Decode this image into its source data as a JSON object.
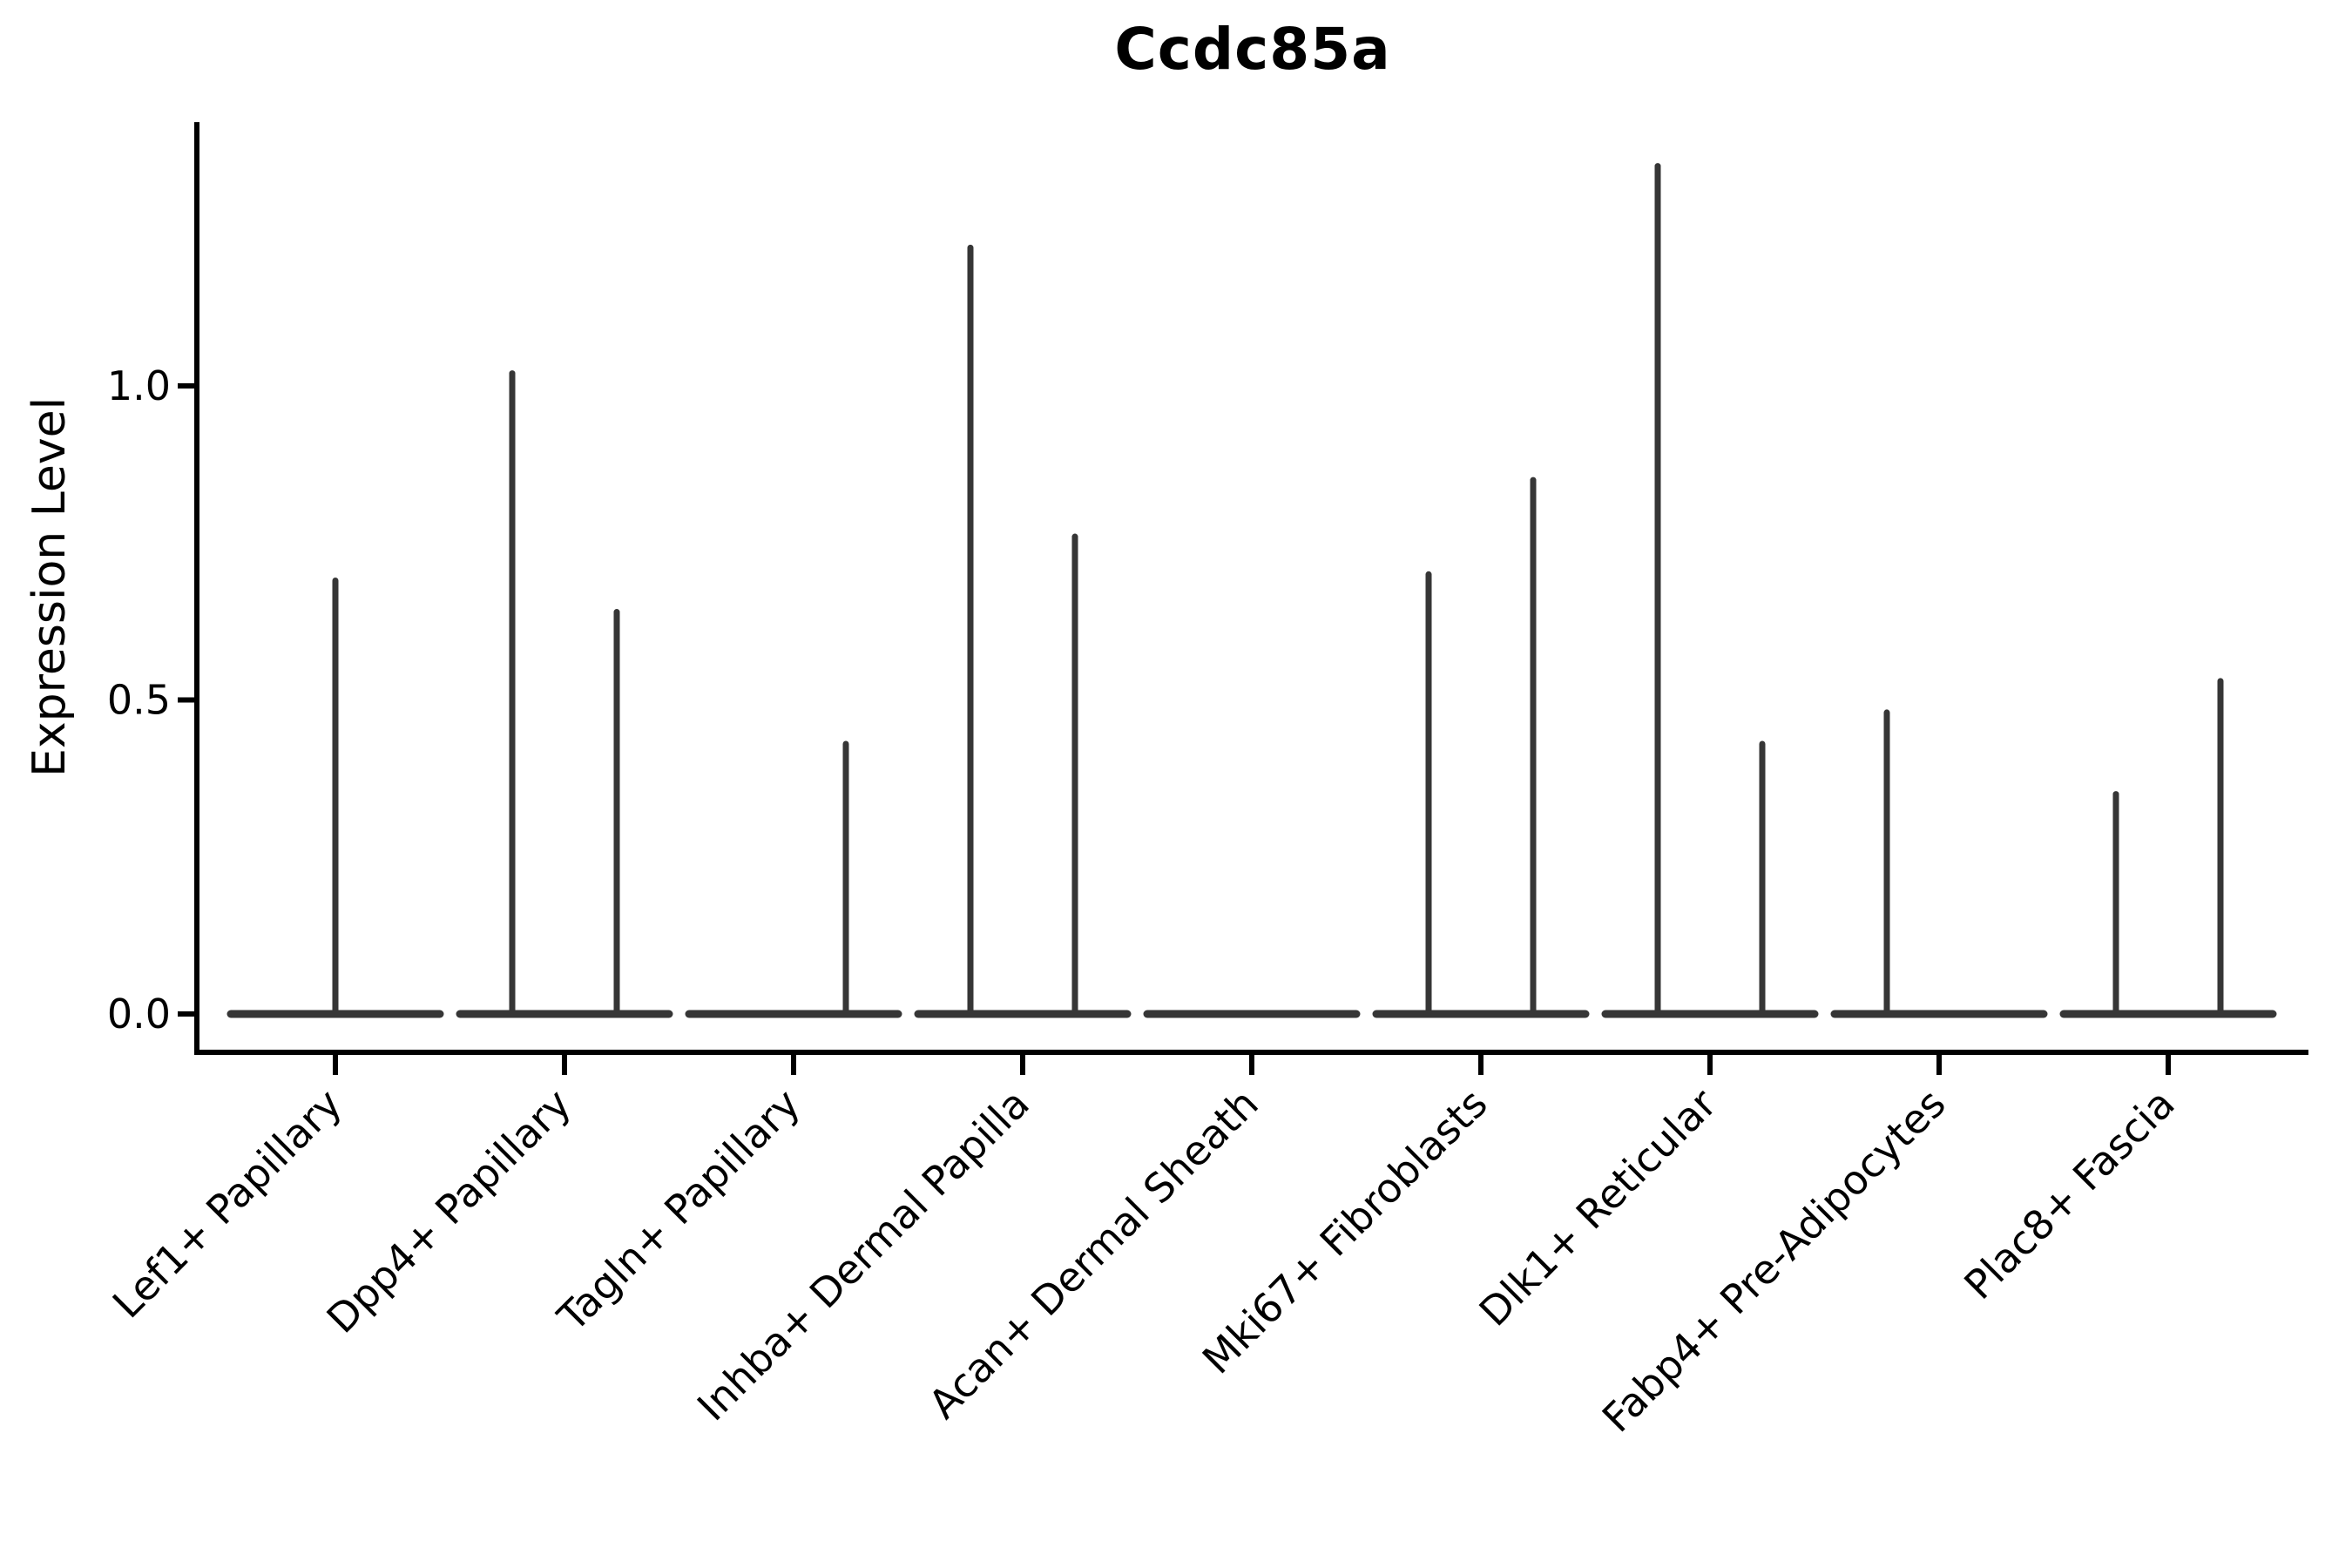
{
  "title": "Ccdc85a",
  "y_axis": {
    "label": "Expression Level"
  },
  "chart_data": {
    "type": "violin",
    "title": "Ccdc85a",
    "xlabel": "",
    "ylabel": "Expression Level",
    "yticks": [
      0.0,
      0.5,
      1.0
    ],
    "ylim": [
      -0.061,
      1.42
    ],
    "grid": false,
    "legend": null,
    "categories": [
      "Lef1+ Papillary",
      "Dpp4+ Papillary",
      "Tagln+ Papillary",
      "Inhba+ Dermal Papilla",
      "Acan+ Dermal Sheath",
      "Mki67+ Fibroblasts",
      "Dlk1+ Reticular",
      "Fabp4+ Pre-Adipocytes",
      "Plac8+ Fascia"
    ],
    "violins": [
      {
        "category": "Lef1+ Papillary",
        "zero_line": true,
        "spikes": [
          {
            "position": "center",
            "max": 0.69
          }
        ]
      },
      {
        "category": "Dpp4+ Papillary",
        "zero_line": true,
        "spikes": [
          {
            "position": "left",
            "max": 1.02
          },
          {
            "position": "right",
            "max": 0.64
          }
        ]
      },
      {
        "category": "Tagln+ Papillary",
        "zero_line": true,
        "spikes": [
          {
            "position": "right",
            "max": 0.43
          }
        ]
      },
      {
        "category": "Inhba+ Dermal Papilla",
        "zero_line": true,
        "spikes": [
          {
            "position": "left",
            "max": 1.22
          },
          {
            "position": "right",
            "max": 0.76
          }
        ]
      },
      {
        "category": "Acan+ Dermal Sheath",
        "zero_line": true,
        "spikes": []
      },
      {
        "category": "Mki67+ Fibroblasts",
        "zero_line": true,
        "spikes": [
          {
            "position": "left",
            "max": 0.7
          },
          {
            "position": "right",
            "max": 0.85
          }
        ]
      },
      {
        "category": "Dlk1+ Reticular",
        "zero_line": true,
        "spikes": [
          {
            "position": "left",
            "max": 1.35
          },
          {
            "position": "right",
            "max": 0.43
          }
        ]
      },
      {
        "category": "Fabp4+ Pre-Adipocytes",
        "zero_line": true,
        "spikes": [
          {
            "position": "left",
            "max": 0.48
          }
        ]
      },
      {
        "category": "Plac8+ Fascia",
        "zero_line": true,
        "spikes": [
          {
            "position": "left",
            "max": 0.35
          },
          {
            "position": "right",
            "max": 0.53
          }
        ]
      }
    ],
    "colors": {
      "violin_stroke": "#363636",
      "axis": "#000000",
      "text": "#000000",
      "background": "#ffffff"
    }
  }
}
